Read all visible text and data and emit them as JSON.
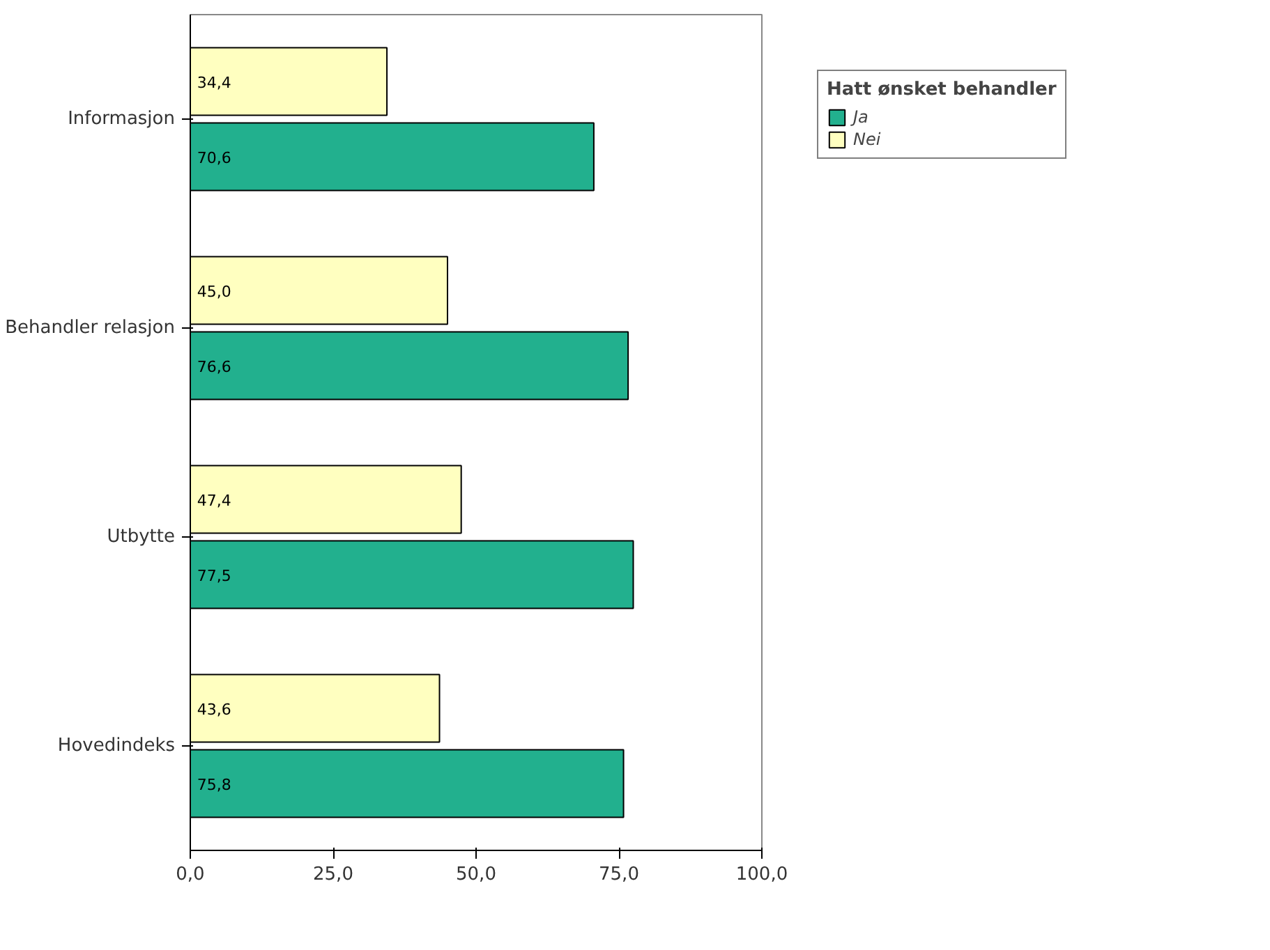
{
  "chart_data": {
    "type": "bar",
    "orientation": "horizontal",
    "legend_title": "Hatt ønsket behandler",
    "categories": [
      "Informasjon",
      "Behandler relasjon",
      "Utbytte",
      "Hovedindeks"
    ],
    "series": [
      {
        "name": "Ja",
        "color": "#22b08e",
        "values": [
          70.6,
          76.6,
          77.5,
          75.8
        ],
        "value_labels": [
          "70,6",
          "76,6",
          "77,5",
          "75,8"
        ]
      },
      {
        "name": "Nei",
        "color": "#ffffc0",
        "values": [
          34.4,
          45.0,
          47.4,
          43.6
        ],
        "value_labels": [
          "34,4",
          "45,0",
          "47,4",
          "43,6"
        ]
      }
    ],
    "xlim": [
      0,
      100
    ],
    "xticks": [
      {
        "value": 0,
        "label": "0,0"
      },
      {
        "value": 25,
        "label": "25,0"
      },
      {
        "value": 50,
        "label": "50,0"
      },
      {
        "value": 75,
        "label": "75,0"
      },
      {
        "value": 100,
        "label": "100,0"
      }
    ],
    "grid": false,
    "legend": "top right"
  }
}
